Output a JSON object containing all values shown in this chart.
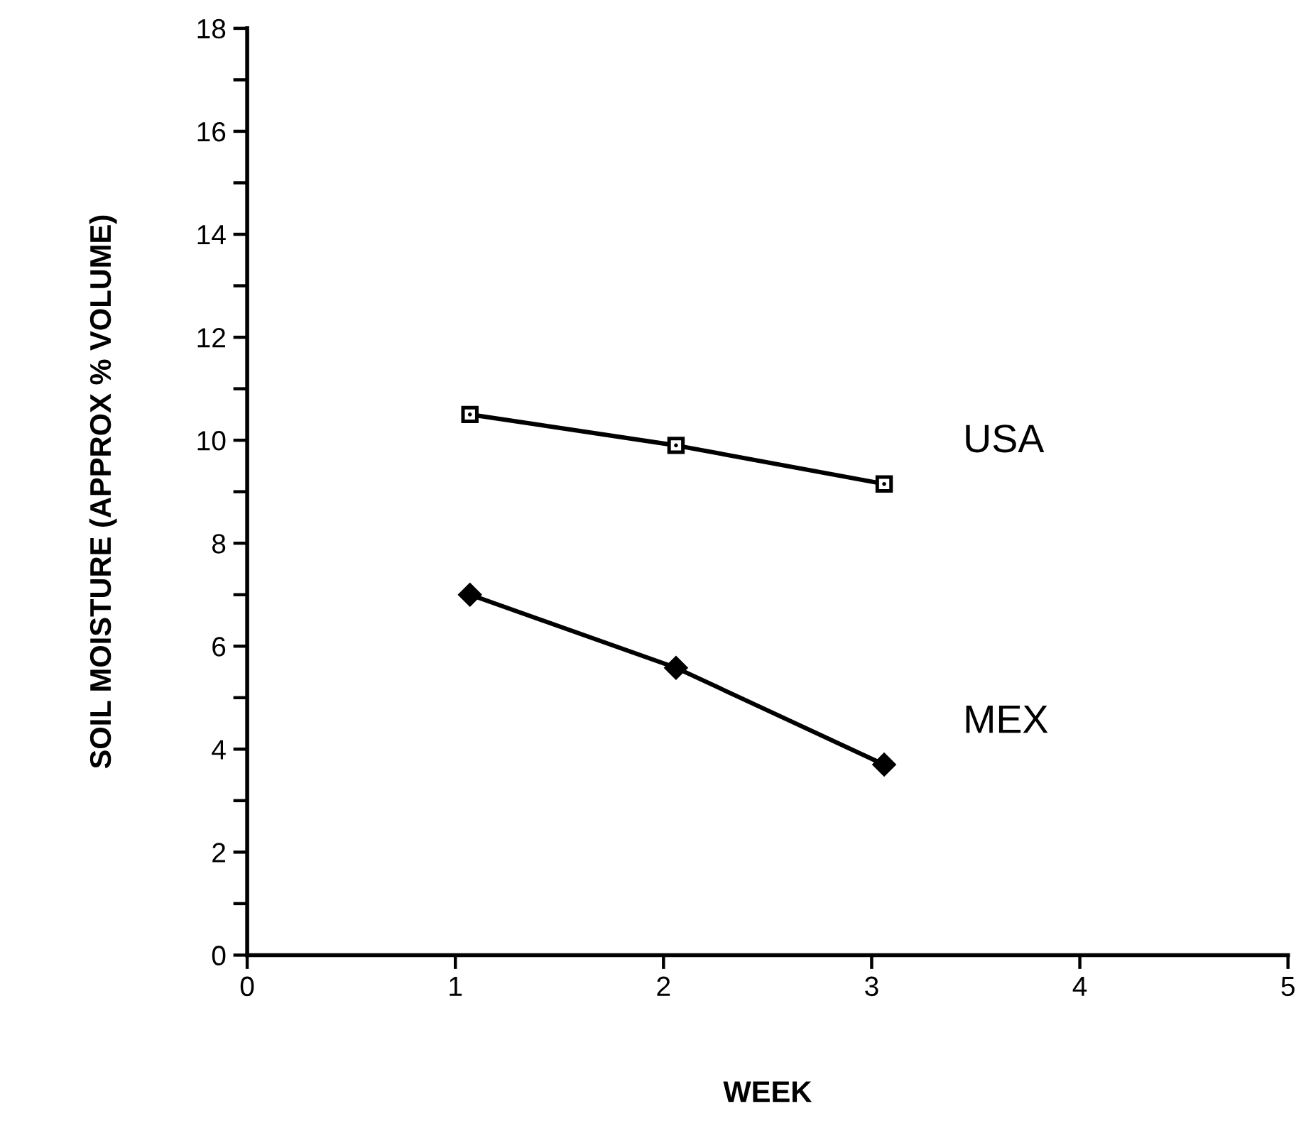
{
  "chart_data": {
    "type": "line",
    "xlabel": "WEEK",
    "ylabel": "SOIL MOISTURE (APPROX % VOLUME)",
    "xlim": [
      0,
      5
    ],
    "xticks": [
      0,
      1,
      2,
      3,
      4,
      5
    ],
    "ylim": [
      0,
      18
    ],
    "yticks": [
      0,
      {
        "value": 1,
        "label": null
      },
      2,
      {
        "value": 3,
        "label": null
      },
      4,
      {
        "value": 5,
        "label": null
      },
      6,
      {
        "value": 7,
        "label": null
      },
      8,
      {
        "value": 9,
        "label": null
      },
      10,
      {
        "value": 11,
        "label": null
      },
      12,
      {
        "value": 13,
        "label": null
      },
      14,
      {
        "value": 15,
        "label": null
      },
      16,
      {
        "value": 17,
        "label": null
      },
      18
    ],
    "grid": false,
    "legend": false,
    "line_style": "solid",
    "series": [
      {
        "name": "USA",
        "color": "#000000",
        "marker": "square",
        "x": [
          1.07,
          2.06,
          3.06
        ],
        "values": [
          10.5,
          9.9,
          9.15
        ]
      },
      {
        "name": "MEX",
        "color": "#000000",
        "marker": "diamond",
        "x": [
          1.07,
          2.06,
          3.06
        ],
        "values": [
          7.0,
          5.58,
          3.7
        ]
      }
    ]
  }
}
